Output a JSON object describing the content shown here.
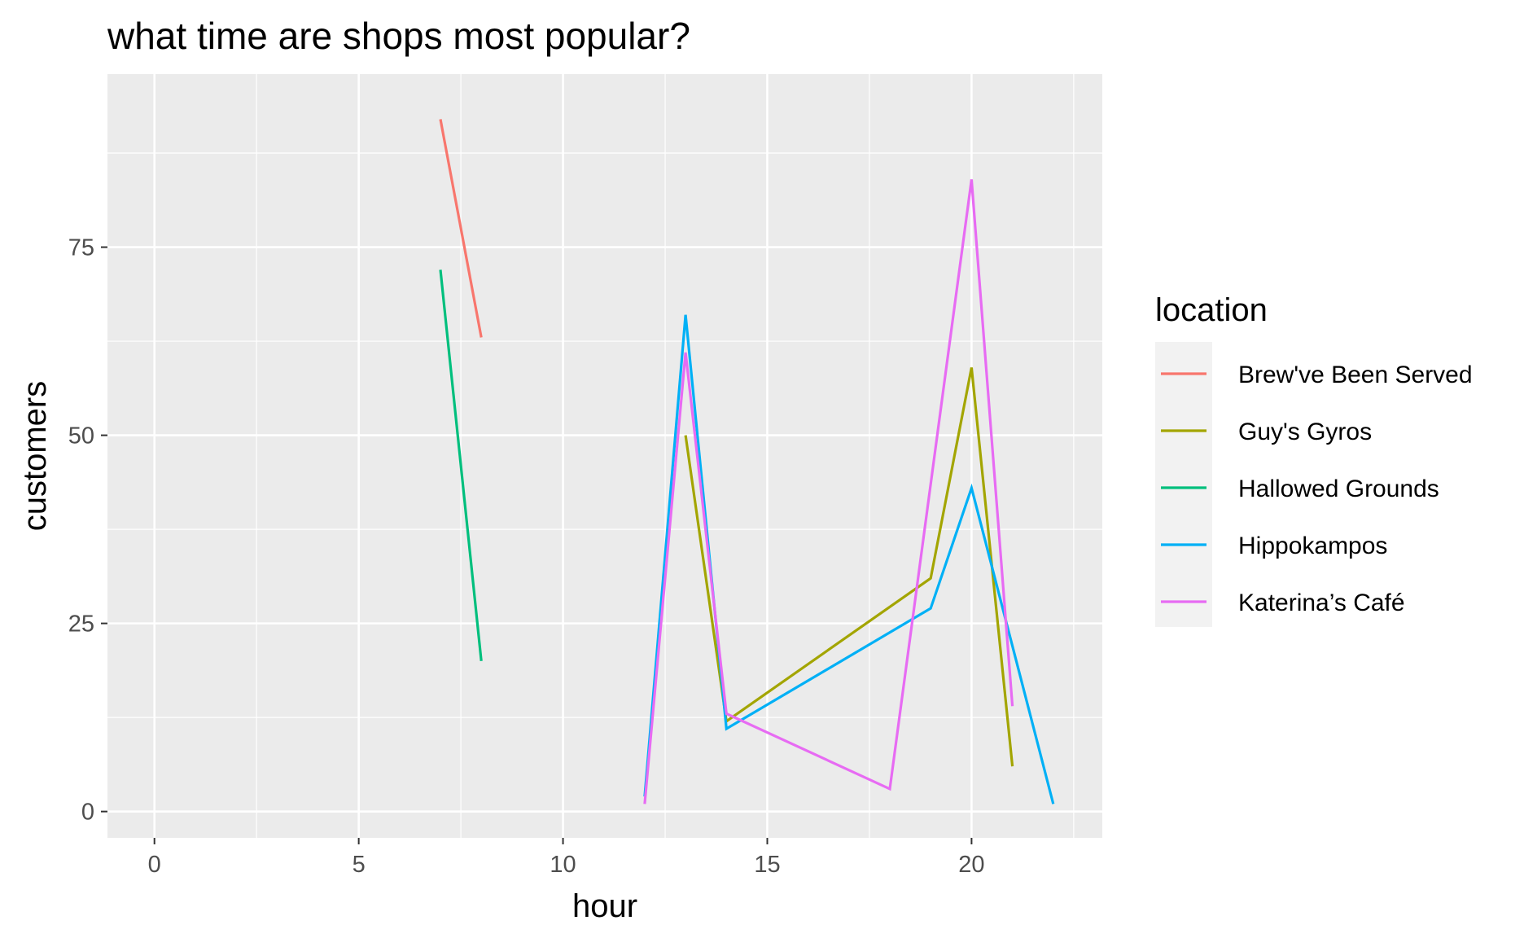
{
  "chart_data": {
    "type": "line",
    "title": "what time are shops most popular?",
    "xlabel": "hour",
    "ylabel": "customers",
    "xlim": [
      -1.15,
      23.2
    ],
    "ylim": [
      -3.5,
      98
    ],
    "x_ticks": [
      0,
      5,
      10,
      15,
      20
    ],
    "y_ticks": [
      0,
      25,
      50,
      75
    ],
    "grid": true,
    "legend": {
      "title": "location",
      "placement": "right"
    },
    "series": [
      {
        "name": "Brew've Been Served",
        "color": "#F8766D",
        "points": [
          [
            7,
            92
          ],
          [
            8,
            63
          ]
        ]
      },
      {
        "name": "Guy's Gyros",
        "color": "#A3A500",
        "points": [
          [
            13,
            50
          ],
          [
            14,
            12
          ],
          [
            19,
            31
          ],
          [
            20,
            59
          ],
          [
            21,
            6
          ]
        ]
      },
      {
        "name": "Hallowed Grounds",
        "color": "#00BF7D",
        "points": [
          [
            7,
            72
          ],
          [
            8,
            20
          ]
        ]
      },
      {
        "name": "Hippokampos",
        "color": "#00B0F6",
        "points": [
          [
            12,
            2
          ],
          [
            13,
            66
          ],
          [
            14,
            11
          ],
          [
            19,
            27
          ],
          [
            20,
            43
          ],
          [
            22,
            1
          ]
        ]
      },
      {
        "name": "Katerina’s Café",
        "color": "#E76BF3",
        "points": [
          [
            12,
            1
          ],
          [
            13,
            61
          ],
          [
            14,
            13
          ],
          [
            18,
            3
          ],
          [
            20,
            84
          ],
          [
            21,
            14
          ]
        ]
      }
    ]
  }
}
